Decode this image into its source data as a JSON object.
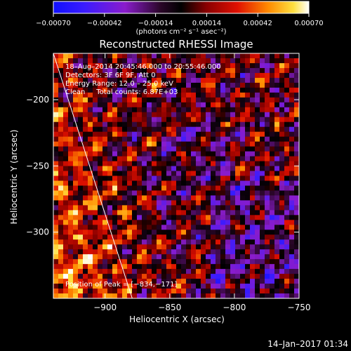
{
  "chart_data": {
    "type": "heatmap",
    "title": "Reconstructed RHESSI Image",
    "xlabel": "Heliocentric X (arcsec)",
    "ylabel": "Heliocentric Y (arcsec)",
    "xlim": [
      -940,
      -750
    ],
    "ylim": [
      -350,
      -165
    ],
    "xticks": [
      -900,
      -850,
      -800,
      -750
    ],
    "xtick_labels": [
      "−900",
      "−850",
      "−800",
      "−750"
    ],
    "yticks": [
      -200,
      -250,
      -300
    ],
    "ytick_labels": [
      "−200",
      "−250",
      "−300"
    ],
    "colorbar": {
      "min": -0.0007,
      "max": 0.0007,
      "ticks": [
        -0.0007,
        -0.00042,
        -0.00014,
        0.00014,
        0.00042,
        0.0007
      ],
      "tick_labels": [
        "−0.00070",
        "−0.00042",
        "−0.00014",
        "0.00014",
        "0.00042",
        "0.00070"
      ],
      "units_label": "(photons cm⁻² s⁻¹ asec⁻²)"
    },
    "annotations": {
      "time_range": "18–Aug–2014 20:45:46.000 to 20:55:46.000",
      "detectors": "Detectors: 3F 6F 9F, Att 0",
      "energy": "Energy Range: 12.0 – 25.0 keV",
      "clean": "Clean     Total counts: 6.87E+03",
      "peak": "Position of Peak = [−834,−171]"
    },
    "peak_position": [
      -834,
      -171
    ],
    "limb_line": [
      [
        -940,
        -165
      ],
      [
        -879,
        -350
      ]
    ],
    "grid": false
  },
  "footer": {
    "timestamp": "14–Jan–2017 01:34"
  },
  "colors": {
    "background": "#000000",
    "foreground": "#ffffff"
  }
}
